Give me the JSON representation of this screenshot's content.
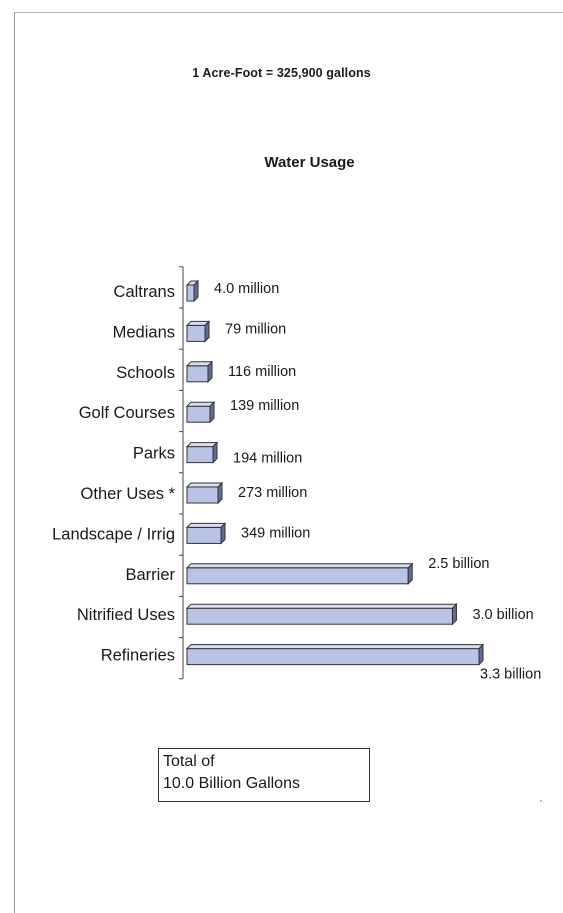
{
  "subtitle": "1 Acre-Foot = 325,900 gallons",
  "total_box": {
    "line1": "Total of",
    "line2": "10.0 Billion Gallons"
  },
  "colors": {
    "bar_face": "#b8c4e6",
    "bar_top": "#d9def0",
    "bar_side": "#5f6c9a",
    "edge": "#333333"
  },
  "chart_data": {
    "type": "bar",
    "orientation": "horizontal",
    "title": "Water Usage",
    "categories": [
      "Caltrans",
      "Medians",
      "Schools",
      "Golf Courses",
      "Parks",
      "Other Uses *",
      "Landscape / Irrig",
      "Barrier",
      "Nitrified Uses",
      "Refineries"
    ],
    "values": [
      4.0,
      79,
      116,
      139,
      194,
      273,
      349,
      2500,
      3000,
      3300
    ],
    "unit": "million gallons",
    "data_labels": [
      "4.0 million",
      "79 million",
      "116 million",
      "139 million",
      "194 million",
      "273 million",
      "349 million",
      "2.5 billion",
      "3.0 billion",
      "3.3 billion"
    ],
    "xlim": [
      0,
      3300
    ],
    "grid": false,
    "legend": "none"
  }
}
